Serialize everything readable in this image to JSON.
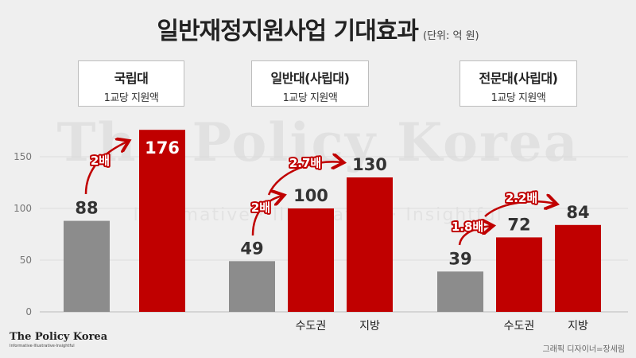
{
  "title": "일반재정지원사업 기대효과",
  "unit": "(단위: 억 원)",
  "groups": [
    {
      "name": "국립대",
      "sub": "1교당 지원액"
    },
    {
      "name": "일반대(사립대)",
      "sub": "1교당 지원액"
    },
    {
      "name": "전문대(사립대)",
      "sub": "1교당 지원액"
    }
  ],
  "watermark": "The Policy Korea",
  "watermark_sub": "Informative · Illustrative · Insightful",
  "logo": {
    "name": "The Policy Korea",
    "tagline": "Informative·Illustrative·Insightful"
  },
  "credit": "그래픽 디자이너=장세림",
  "colors": {
    "gray": "#8c8c8c",
    "red": "#c00000",
    "arrow": "#c00000"
  },
  "chart_data": {
    "type": "bar",
    "ylim": [
      0,
      180
    ],
    "yticks": [
      0,
      50,
      100,
      150
    ],
    "grid": true,
    "groups": [
      {
        "name": "국립대",
        "bars": [
          {
            "label": "",
            "value": 88,
            "color": "gray"
          },
          {
            "label": "",
            "value": 176,
            "color": "red"
          }
        ],
        "annotations": [
          {
            "text": "2배",
            "from": 0,
            "to": 1
          }
        ]
      },
      {
        "name": "일반대(사립대)",
        "bars": [
          {
            "label": "",
            "value": 49,
            "color": "gray"
          },
          {
            "label": "수도권",
            "value": 100,
            "color": "red"
          },
          {
            "label": "지방",
            "value": 130,
            "color": "red"
          }
        ],
        "annotations": [
          {
            "text": "2배",
            "from": 0,
            "to": 1
          },
          {
            "text": "2.7배",
            "from": 1,
            "to": 2
          }
        ]
      },
      {
        "name": "전문대(사립대)",
        "bars": [
          {
            "label": "",
            "value": 39,
            "color": "gray"
          },
          {
            "label": "수도권",
            "value": 72,
            "color": "red"
          },
          {
            "label": "지방",
            "value": 84,
            "color": "red"
          }
        ],
        "annotations": [
          {
            "text": "1.8배",
            "from": 0,
            "to": 1
          },
          {
            "text": "2.2배",
            "from": 1,
            "to": 2
          }
        ]
      }
    ]
  }
}
